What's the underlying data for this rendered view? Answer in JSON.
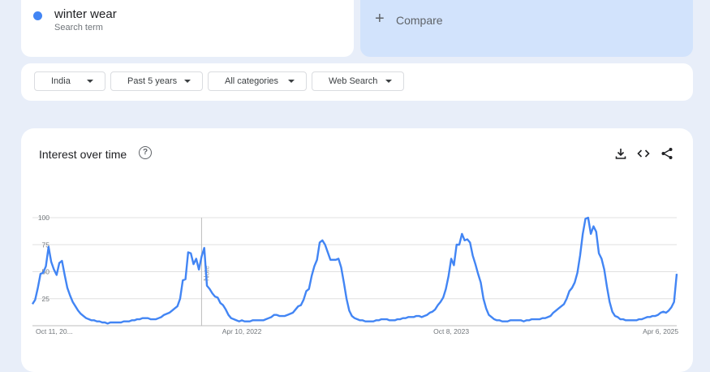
{
  "search_term": {
    "name": "winter wear",
    "subtitle": "Search term",
    "color": "#4285f4"
  },
  "compare": {
    "label": "Compare"
  },
  "filters": {
    "region": "India",
    "time": "Past 5 years",
    "category": "All categories",
    "property": "Web Search"
  },
  "chart_header": {
    "title": "Interest over time",
    "help_icon": "help-circle-icon",
    "download_icon": "download-icon",
    "embed_icon": "code-icon",
    "share_icon": "share-icon"
  },
  "annotation": "Note",
  "chart_data": {
    "type": "line",
    "title": "Interest over time",
    "series": [
      {
        "name": "winter wear",
        "color": "#4285f4",
        "values": [
          20,
          24,
          35,
          48,
          49,
          55,
          73,
          59,
          52,
          47,
          58,
          60,
          47,
          35,
          28,
          22,
          18,
          14,
          11,
          9,
          7,
          6,
          5,
          5,
          4,
          4,
          3,
          3,
          2,
          3,
          3,
          3,
          3,
          3,
          4,
          4,
          4,
          5,
          5,
          6,
          6,
          7,
          7,
          7,
          6,
          6,
          6,
          7,
          8,
          10,
          11,
          12,
          14,
          16,
          18,
          25,
          42,
          43,
          68,
          67,
          57,
          62,
          52,
          64,
          72,
          37,
          34,
          30,
          27,
          26,
          21,
          19,
          15,
          10,
          7,
          6,
          5,
          4,
          5,
          4,
          4,
          4,
          5,
          5,
          5,
          5,
          5,
          6,
          7,
          8,
          10,
          10,
          9,
          9,
          9,
          10,
          11,
          12,
          15,
          18,
          19,
          24,
          32,
          34,
          46,
          55,
          61,
          77,
          79,
          75,
          68,
          61,
          61,
          61,
          62,
          54,
          40,
          25,
          14,
          9,
          7,
          6,
          5,
          5,
          4,
          4,
          4,
          4,
          5,
          5,
          6,
          6,
          6,
          5,
          5,
          5,
          6,
          6,
          7,
          7,
          8,
          8,
          8,
          9,
          9,
          8,
          9,
          10,
          12,
          13,
          15,
          19,
          22,
          26,
          34,
          46,
          62,
          56,
          75,
          75,
          85,
          79,
          80,
          77,
          65,
          57,
          48,
          40,
          25,
          16,
          10,
          8,
          6,
          5,
          5,
          4,
          4,
          4,
          5,
          5,
          5,
          5,
          5,
          4,
          5,
          5,
          6,
          6,
          6,
          6,
          7,
          7,
          8,
          9,
          12,
          14,
          16,
          18,
          20,
          25,
          32,
          35,
          40,
          49,
          65,
          85,
          99,
          100,
          85,
          92,
          87,
          67,
          62,
          52,
          36,
          22,
          13,
          9,
          8,
          6,
          6,
          5,
          5,
          5,
          5,
          5,
          6,
          6,
          7,
          8,
          8,
          9,
          9,
          10,
          12,
          13,
          12,
          14,
          17,
          22,
          48
        ]
      }
    ],
    "x_tick_labels": [
      "Oct 11, 20...",
      "Apr 10, 2022",
      "Oct 8, 2023",
      "Apr 6, 2025"
    ],
    "x_tick_indices": [
      0,
      78,
      156,
      234
    ],
    "y_ticks": [
      25,
      50,
      75,
      100
    ],
    "ylim": [
      0,
      100
    ],
    "grid": true,
    "note_index": 63
  }
}
